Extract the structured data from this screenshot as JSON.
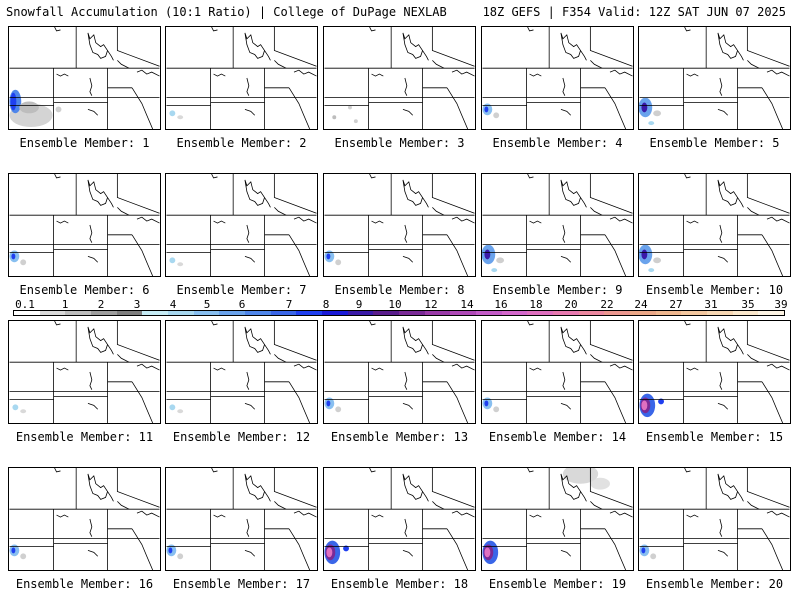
{
  "header": {
    "left": "Snowfall Accumulation (10:1 Ratio) | College of DuPage NEXLAB",
    "right": "18Z GEFS | F354 Valid: 12Z SAT JUN 07 2025"
  },
  "members": [
    {
      "label": "Ensemble Member: 1",
      "snow": "large-left"
    },
    {
      "label": "Ensemble Member: 2",
      "snow": "tiny-left"
    },
    {
      "label": "Ensemble Member: 3",
      "snow": "scattered"
    },
    {
      "label": "Ensemble Member: 4",
      "snow": "small-left"
    },
    {
      "label": "Ensemble Member: 5",
      "snow": "medium-left"
    },
    {
      "label": "Ensemble Member: 6",
      "snow": "small-left"
    },
    {
      "label": "Ensemble Member: 7",
      "snow": "tiny-left"
    },
    {
      "label": "Ensemble Member: 8",
      "snow": "small-left"
    },
    {
      "label": "Ensemble Member: 9",
      "snow": "medium-left"
    },
    {
      "label": "Ensemble Member: 10",
      "snow": "medium-left"
    },
    {
      "label": "Ensemble Member: 11",
      "snow": "tiny-left"
    },
    {
      "label": "Ensemble Member: 12",
      "snow": "tiny-left"
    },
    {
      "label": "Ensemble Member: 13",
      "snow": "small-left"
    },
    {
      "label": "Ensemble Member: 14",
      "snow": "small-left"
    },
    {
      "label": "Ensemble Member: 15",
      "snow": "heavy-left"
    },
    {
      "label": "Ensemble Member: 16",
      "snow": "small-left"
    },
    {
      "label": "Ensemble Member: 17",
      "snow": "small-left"
    },
    {
      "label": "Ensemble Member: 18",
      "snow": "heavy-left"
    },
    {
      "label": "Ensemble Member: 19",
      "snow": "heavy-left-north"
    },
    {
      "label": "Ensemble Member: 20",
      "snow": "small-left"
    }
  ],
  "scale": {
    "labels": [
      "0.1",
      "1",
      "2",
      "3",
      "4",
      "5",
      "6",
      "7",
      "8",
      "9",
      "10",
      "12",
      "14",
      "16",
      "18",
      "20",
      "22",
      "24",
      "27",
      "31",
      "35",
      "39"
    ],
    "colors": [
      "#ffffff",
      "#d9d9d9",
      "#bdbdbd",
      "#9e9e9e",
      "#7f7f7f",
      "#c6ecf5",
      "#a8d8f0",
      "#88bff0",
      "#6aa3ec",
      "#4f86ea",
      "#3a66e8",
      "#1f3ff0",
      "#1a1ad8",
      "#3a1aa8",
      "#5a1d8c",
      "#7a2a96",
      "#9a3aa8",
      "#b04ab8",
      "#c45cc8",
      "#d468cc",
      "#e070c0",
      "#e87ab0",
      "#ec88a0",
      "#ec9890",
      "#eca888",
      "#f0b890",
      "#f4c8a0",
      "#f8d8b4",
      "#fbe8cc",
      "#fdf4e4"
    ]
  }
}
